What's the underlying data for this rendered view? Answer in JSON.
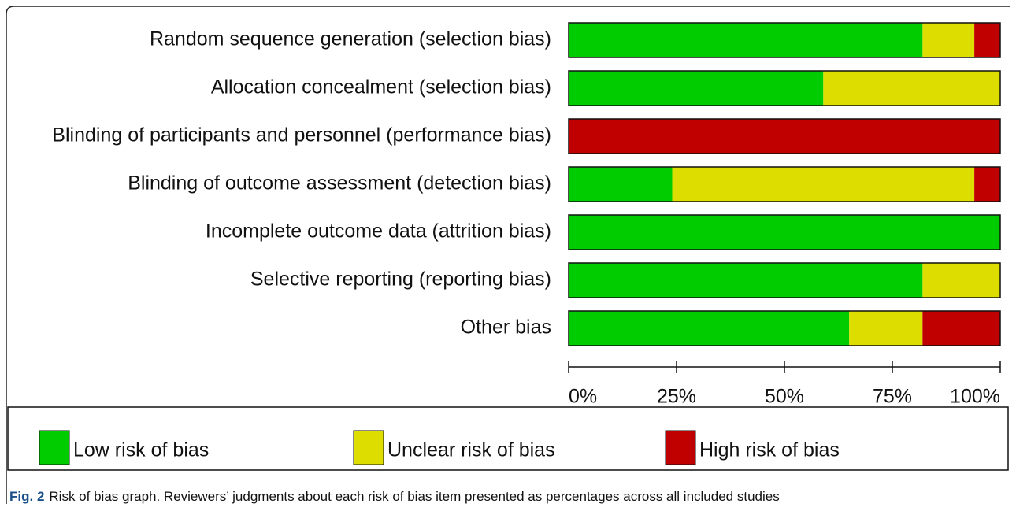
{
  "chart_data": {
    "type": "stacked-bar-horizontal",
    "categories": [
      "Random sequence generation (selection bias)",
      "Allocation concealment (selection bias)",
      "Blinding of participants and personnel (performance bias)",
      "Blinding of outcome assessment (detection bias)",
      "Incomplete outcome data (attrition bias)",
      "Selective reporting (reporting bias)",
      "Other bias"
    ],
    "series": [
      {
        "name": "Low risk of bias",
        "color": "#00cc00",
        "values": [
          82,
          59,
          0,
          24,
          100,
          82,
          65
        ]
      },
      {
        "name": "Unclear risk of bias",
        "color": "#dddd00",
        "values": [
          12,
          41,
          0,
          70,
          0,
          18,
          17
        ]
      },
      {
        "name": "High risk of bias",
        "color": "#c00000",
        "values": [
          6,
          0,
          100,
          6,
          0,
          0,
          18
        ]
      }
    ],
    "xlim": [
      0,
      100
    ],
    "xticks": [
      {
        "value": 0,
        "label": "0%"
      },
      {
        "value": 25,
        "label": "25%"
      },
      {
        "value": 50,
        "label": "50%"
      },
      {
        "value": 75,
        "label": "75%"
      },
      {
        "value": 100,
        "label": "100%"
      }
    ],
    "caption_label": "Fig. 2",
    "caption": "Risk of bias graph. Reviewers’ judgments about each risk of bias item presented as percentages across all included studies"
  }
}
